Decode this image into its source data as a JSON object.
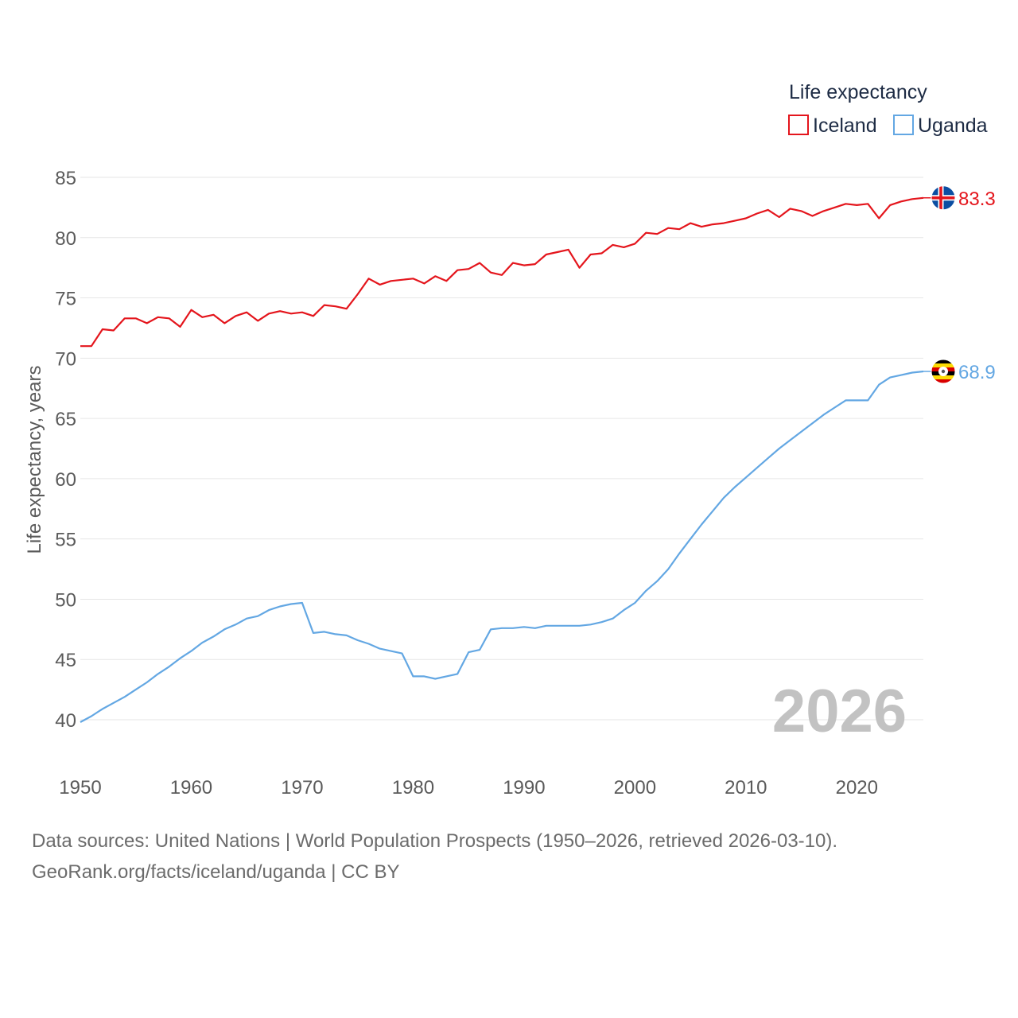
{
  "chart_data": {
    "type": "line",
    "legend_title": "Life expectancy",
    "ylabel": "Life expectancy, years",
    "xlabel": "",
    "ylim": [
      38,
      86
    ],
    "xlim": [
      1950,
      2026
    ],
    "y_ticks": [
      40,
      45,
      50,
      55,
      60,
      65,
      70,
      75,
      80,
      85
    ],
    "x_ticks": [
      1950,
      1960,
      1970,
      1980,
      1990,
      2000,
      2010,
      2020
    ],
    "grid": true,
    "legend_position": "top-right",
    "year_label": "2026",
    "x": [
      1950,
      1951,
      1952,
      1953,
      1954,
      1955,
      1956,
      1957,
      1958,
      1959,
      1960,
      1961,
      1962,
      1963,
      1964,
      1965,
      1966,
      1967,
      1968,
      1969,
      1970,
      1971,
      1972,
      1973,
      1974,
      1975,
      1976,
      1977,
      1978,
      1979,
      1980,
      1981,
      1982,
      1983,
      1984,
      1985,
      1986,
      1987,
      1988,
      1989,
      1990,
      1991,
      1992,
      1993,
      1994,
      1995,
      1996,
      1997,
      1998,
      1999,
      2000,
      2001,
      2002,
      2003,
      2004,
      2005,
      2006,
      2007,
      2008,
      2009,
      2010,
      2011,
      2012,
      2013,
      2014,
      2015,
      2016,
      2017,
      2018,
      2019,
      2020,
      2021,
      2022,
      2023,
      2024,
      2025,
      2026
    ],
    "series": [
      {
        "name": "Iceland",
        "color": "#e4151c",
        "end_label": "83.3",
        "flag": "iceland-flag",
        "values": [
          71.0,
          71.0,
          72.4,
          72.3,
          73.3,
          73.3,
          72.9,
          73.4,
          73.3,
          72.6,
          74.0,
          73.4,
          73.6,
          72.9,
          73.5,
          73.8,
          73.1,
          73.7,
          73.9,
          73.7,
          73.8,
          73.5,
          74.4,
          74.3,
          74.1,
          75.3,
          76.6,
          76.1,
          76.4,
          76.5,
          76.6,
          76.2,
          76.8,
          76.4,
          77.3,
          77.4,
          77.9,
          77.1,
          76.9,
          77.9,
          77.7,
          77.8,
          78.6,
          78.8,
          79.0,
          77.5,
          78.6,
          78.7,
          79.4,
          79.2,
          79.5,
          80.4,
          80.3,
          80.8,
          80.7,
          81.2,
          80.9,
          81.1,
          81.2,
          81.4,
          81.6,
          82.0,
          82.3,
          81.7,
          82.4,
          82.2,
          81.8,
          82.2,
          82.5,
          82.8,
          82.7,
          82.8,
          81.6,
          82.7,
          83.0,
          83.2,
          83.3
        ]
      },
      {
        "name": "Uganda",
        "color": "#63a7e3",
        "end_label": "68.9",
        "flag": "uganda-flag",
        "values": [
          39.8,
          40.3,
          40.9,
          41.4,
          41.9,
          42.5,
          43.1,
          43.8,
          44.4,
          45.1,
          45.7,
          46.4,
          46.9,
          47.5,
          47.9,
          48.4,
          48.6,
          49.1,
          49.4,
          49.6,
          49.7,
          47.2,
          47.3,
          47.1,
          47.0,
          46.6,
          46.3,
          45.9,
          45.7,
          45.5,
          43.6,
          43.6,
          43.4,
          43.6,
          43.8,
          45.6,
          45.8,
          47.5,
          47.6,
          47.6,
          47.7,
          47.6,
          47.8,
          47.8,
          47.8,
          47.8,
          47.9,
          48.1,
          48.4,
          49.1,
          49.7,
          50.7,
          51.5,
          52.5,
          53.8,
          55.0,
          56.2,
          57.3,
          58.4,
          59.3,
          60.1,
          60.9,
          61.7,
          62.5,
          63.2,
          63.9,
          64.6,
          65.3,
          65.9,
          66.5,
          66.5,
          66.5,
          67.8,
          68.4,
          68.6,
          68.8,
          68.9
        ]
      }
    ]
  },
  "footer": {
    "line1": "Data sources: United Nations | World Population Prospects (1950–2026, retrieved 2026-03-10).",
    "line2": "GeoRank.org/facts/iceland/uganda | CC BY"
  }
}
